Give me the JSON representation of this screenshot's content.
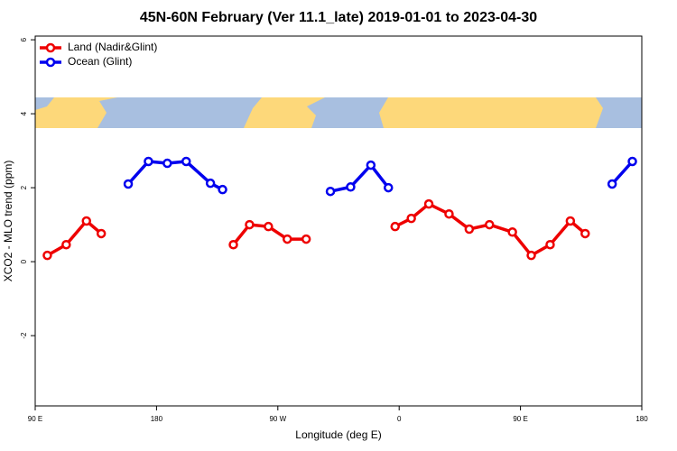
{
  "chart_data": {
    "type": "line",
    "title": "45N-60N February (Ver 11.1_late)   2019-01-01 to 2023-04-30",
    "xlabel": "Longitude (deg E)",
    "ylabel": "XCO2 - MLO trend (ppm)",
    "xlim": [
      90,
      540
    ],
    "xticks": [
      {
        "value": 90,
        "label": "90 E"
      },
      180,
      {
        "value": 270,
        "label": "90 W"
      },
      {
        "value": 360,
        "label": "0"
      },
      {
        "value": 450,
        "label": "90 E"
      },
      {
        "value": 540,
        "label": "180"
      }
    ],
    "ylim": [
      -3.9,
      6.1
    ],
    "yticks": [
      -2,
      0,
      2,
      4,
      6
    ],
    "legend": "top-left",
    "series": [
      {
        "name": "Land (Nadir&Glint)",
        "color": "#ee0000",
        "x": [
          99,
          113,
          128,
          139,
          null,
          237,
          249,
          263,
          277,
          291,
          null,
          357,
          369,
          382,
          397,
          412,
          427,
          444,
          458,
          472,
          487,
          498
        ],
        "values": [
          0.17,
          0.46,
          1.1,
          0.76,
          null,
          0.46,
          1.0,
          0.95,
          0.61,
          0.61,
          null,
          0.95,
          1.17,
          1.56,
          1.29,
          0.88,
          1.0,
          0.8,
          0.17,
          0.46,
          1.1,
          0.76
        ]
      },
      {
        "name": "Ocean (Glint)",
        "color": "#0000ee",
        "x": [
          159,
          174,
          188,
          202,
          220,
          229,
          null,
          309,
          324,
          339,
          352,
          null,
          518,
          533
        ],
        "values": [
          2.1,
          2.71,
          2.66,
          2.71,
          2.12,
          1.95,
          null,
          1.9,
          2.02,
          2.61,
          2.0,
          null,
          2.1,
          2.71
        ]
      }
    ]
  }
}
